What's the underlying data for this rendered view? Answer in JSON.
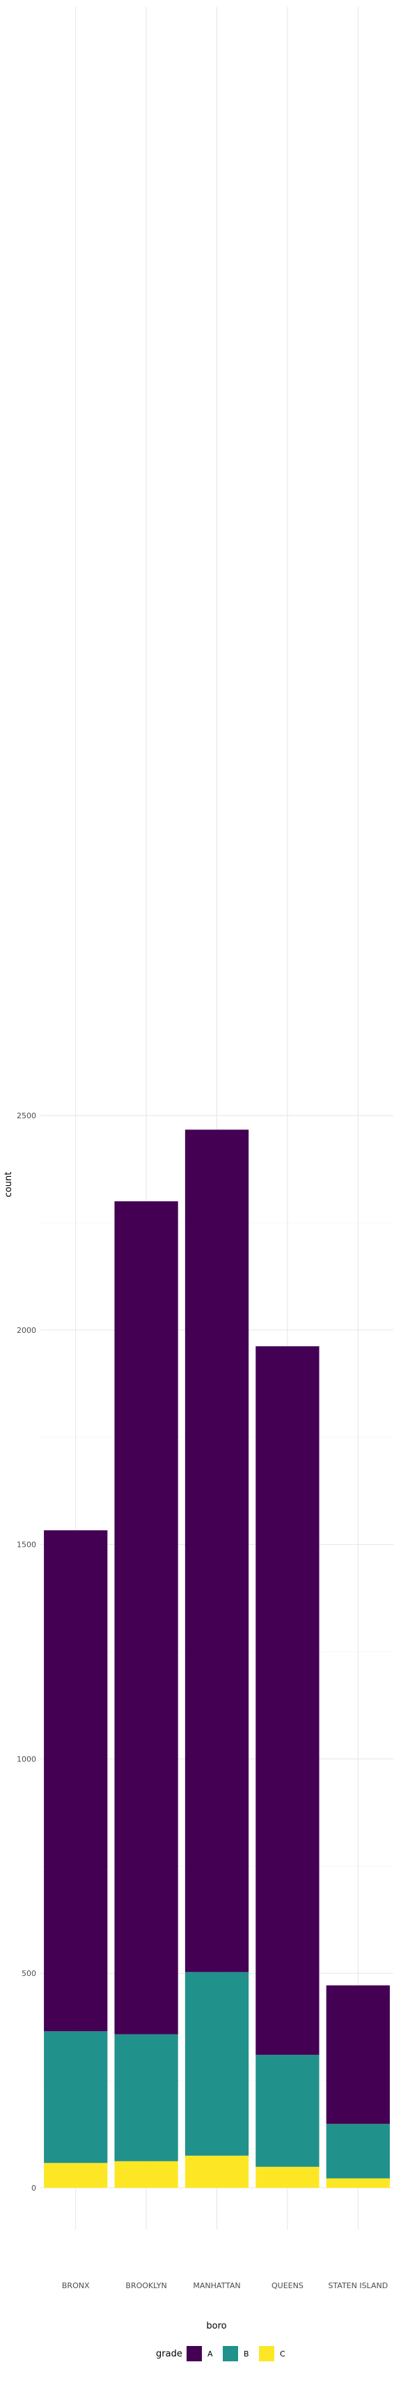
{
  "chart_data": {
    "type": "bar",
    "stacked": true,
    "categories": [
      "BRONX",
      "BROOKLYN",
      "MANHATTAN",
      "QUEENS",
      "STATEN ISLAND"
    ],
    "series": [
      {
        "name": "C",
        "color": "#fde725",
        "values": [
          58,
          62,
          75,
          49,
          22
        ]
      },
      {
        "name": "B",
        "color": "#21918c",
        "values": [
          307,
          296,
          428,
          261,
          127
        ]
      },
      {
        "name": "A",
        "color": "#440154",
        "values": [
          1168,
          1942,
          1964,
          1652,
          323
        ]
      }
    ],
    "xlabel": "boro",
    "ylabel": "count",
    "yticks": [
      0,
      500,
      1000,
      1500,
      2000,
      2500
    ],
    "ylim": [
      0,
      2600
    ],
    "grid": true,
    "legend": {
      "title": "grade",
      "position": "bottom",
      "entries": [
        "A",
        "B",
        "C"
      ]
    }
  }
}
